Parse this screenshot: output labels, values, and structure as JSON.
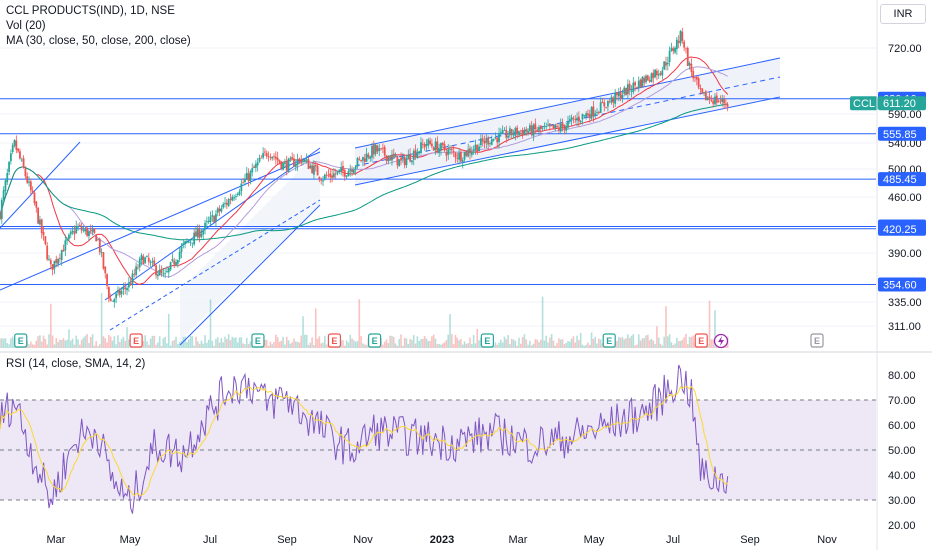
{
  "header": {
    "title": "CCL PRODUCTS(IND), 1D, NSE",
    "volume_label": "Vol (20)",
    "ma_label": "MA (30, close, 50, close, 200, close)",
    "currency": "INR"
  },
  "colors": {
    "up": "#26a69a",
    "down": "#ef5350",
    "hline": "#2962ff",
    "ma30": "#f23645",
    "ma50": "#b39ddb",
    "ma200": "#089981",
    "rsi": "#7e57c2",
    "rsi_ma": "#fdd835",
    "rsi_band": "#ede7f6",
    "channel_fill": "#e3e8f5"
  },
  "chart_data": [
    {
      "type": "line",
      "title": "CCL PRODUCTS(IND), 1D, NSE",
      "subtitle": "Daily candlestick price chart with MA (30, 50, 200)",
      "y_ticks": [
        311,
        335,
        390,
        460,
        500,
        540,
        590,
        720
      ],
      "y_tick_labels": [
        "311.00",
        "335.00",
        "390.00",
        "460.00",
        "500.00",
        "540.00",
        "590.00",
        "720.00"
      ],
      "x_labels": [
        "Mar",
        "May",
        "Jul",
        "Sep",
        "Nov",
        "2023",
        "Mar",
        "May",
        "Jul",
        "Sep",
        "Nov"
      ],
      "horizontal_levels": [
        {
          "value": 620.1,
          "label": "620.10"
        },
        {
          "value": 555.85,
          "label": "555.85"
        },
        {
          "value": 485.45,
          "label": "485.45"
        },
        {
          "value": 423.1,
          "label": "423.10"
        },
        {
          "value": 420.25,
          "label": "420.25"
        },
        {
          "value": 354.6,
          "label": "354.60"
        }
      ],
      "last_price": {
        "symbol": "CCL",
        "value": 611.2,
        "label": "611.20"
      },
      "price_path": [
        [
          "2022-01-25",
          440
        ],
        [
          "2022-02-05",
          540
        ],
        [
          "2022-02-20",
          455
        ],
        [
          "2022-03-05",
          372
        ],
        [
          "2022-03-25",
          422
        ],
        [
          "2022-04-10",
          410
        ],
        [
          "2022-04-20",
          335
        ],
        [
          "2022-05-05",
          355
        ],
        [
          "2022-05-15",
          385
        ],
        [
          "2022-06-01",
          362
        ],
        [
          "2022-06-15",
          398
        ],
        [
          "2022-07-01",
          420
        ],
        [
          "2022-07-20",
          455
        ],
        [
          "2022-08-05",
          490
        ],
        [
          "2022-08-20",
          528
        ],
        [
          "2022-09-01",
          505
        ],
        [
          "2022-09-15",
          515
        ],
        [
          "2022-10-01",
          488
        ],
        [
          "2022-10-20",
          498
        ],
        [
          "2022-11-10",
          530
        ],
        [
          "2022-12-01",
          510
        ],
        [
          "2022-12-20",
          540
        ],
        [
          "2023-01-15",
          520
        ],
        [
          "2023-02-05",
          545
        ],
        [
          "2023-03-01",
          560
        ],
        [
          "2023-04-01",
          565
        ],
        [
          "2023-05-01",
          600
        ],
        [
          "2023-06-01",
          650
        ],
        [
          "2023-06-20",
          680
        ],
        [
          "2023-07-05",
          750
        ],
        [
          "2023-07-10",
          690
        ],
        [
          "2023-07-20",
          625
        ],
        [
          "2023-08-10",
          611.2
        ]
      ],
      "events": {
        "earnings": [
          "2022-02-10",
          "2022-08-12",
          "2022-11-10",
          "2023-02-05",
          "2023-05-10",
          "2024-09-30"
        ],
        "dividends": [
          "2022-05-10",
          "2022-10-10",
          "2023-07-20"
        ],
        "splits": [
          "2023-08-25"
        ]
      },
      "event_labels": {
        "earnings": "E",
        "dividends": "E"
      }
    },
    {
      "type": "line",
      "title": "RSI (14, close, SMA, 14, 2)",
      "y_ticks": [
        20,
        30,
        40,
        50,
        60,
        70,
        80
      ],
      "y_tick_labels": [
        "20.00",
        "30.00",
        "40.00",
        "50.00",
        "60.00",
        "70.00",
        "80.00"
      ],
      "bands": {
        "lower": 30,
        "middle": 50,
        "upper": 70
      },
      "rsi_path": [
        [
          "2022-01-25",
          62
        ],
        [
          "2022-02-05",
          70
        ],
        [
          "2022-02-20",
          47
        ],
        [
          "2022-03-05",
          30
        ],
        [
          "2022-03-25",
          55
        ],
        [
          "2022-04-10",
          58
        ],
        [
          "2022-04-20",
          40
        ],
        [
          "2022-05-05",
          28
        ],
        [
          "2022-05-25",
          52
        ],
        [
          "2022-06-15",
          48
        ],
        [
          "2022-07-01",
          62
        ],
        [
          "2022-07-20",
          75
        ],
        [
          "2022-08-05",
          77
        ],
        [
          "2022-08-20",
          68
        ],
        [
          "2022-09-01",
          72
        ],
        [
          "2022-09-15",
          65
        ],
        [
          "2022-10-10",
          54
        ],
        [
          "2022-10-25",
          50
        ],
        [
          "2022-11-10",
          58
        ],
        [
          "2022-12-10",
          55
        ],
        [
          "2023-01-10",
          53
        ],
        [
          "2023-02-10",
          57
        ],
        [
          "2023-03-10",
          52
        ],
        [
          "2023-04-10",
          55
        ],
        [
          "2023-05-10",
          60
        ],
        [
          "2023-06-10",
          66
        ],
        [
          "2023-07-05",
          80
        ],
        [
          "2023-07-12",
          72
        ],
        [
          "2023-07-20",
          40
        ],
        [
          "2023-08-05",
          38
        ],
        [
          "2023-08-12",
          41
        ]
      ],
      "x_labels": [
        "Mar",
        "May",
        "Jul",
        "Sep",
        "Nov",
        "2023",
        "Mar",
        "May",
        "Jul",
        "Sep",
        "Nov"
      ]
    }
  ]
}
